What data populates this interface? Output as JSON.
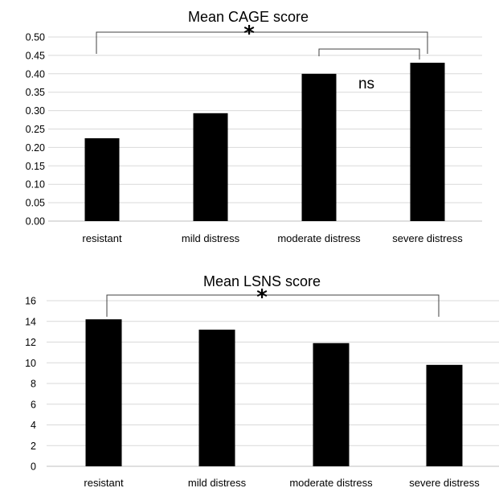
{
  "chart_data": [
    {
      "type": "bar",
      "title": "Mean CAGE score",
      "categories": [
        "resistant",
        "mild distress",
        "moderate distress",
        "severe distress"
      ],
      "values": [
        0.225,
        0.293,
        0.4,
        0.43
      ],
      "ylim": [
        0,
        0.5
      ],
      "yticks": [
        "0.00",
        "0.05",
        "0.10",
        "0.15",
        "0.20",
        "0.25",
        "0.30",
        "0.35",
        "0.40",
        "0.45",
        "0.50"
      ],
      "grid": true,
      "bar_color": "#000000",
      "annotations": [
        {
          "label": "*",
          "from": "resistant",
          "to": "severe distress"
        },
        {
          "label": "ns",
          "from": "moderate distress",
          "to": "severe distress"
        }
      ]
    },
    {
      "type": "bar",
      "title": "Mean LSNS score",
      "categories": [
        "resistant",
        "mild distress",
        "moderate distress",
        "severe distress"
      ],
      "values": [
        14.2,
        13.2,
        11.9,
        9.8
      ],
      "ylim": [
        0,
        16
      ],
      "yticks": [
        "0",
        "2",
        "4",
        "6",
        "8",
        "10",
        "12",
        "14",
        "16"
      ],
      "grid": true,
      "bar_color": "#000000",
      "annotations": [
        {
          "label": "*",
          "from": "resistant",
          "to": "severe distress"
        }
      ]
    }
  ]
}
